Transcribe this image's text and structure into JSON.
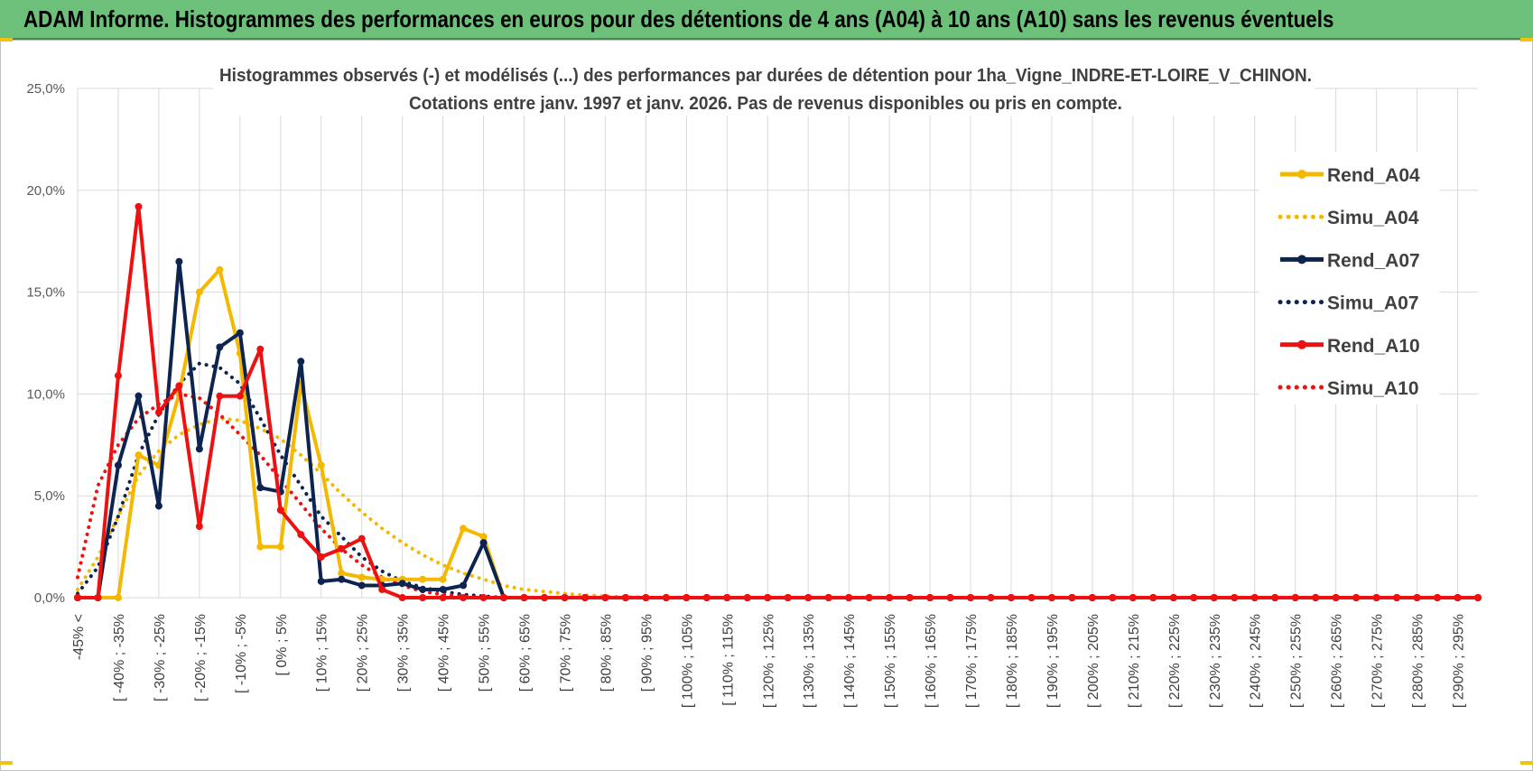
{
  "banner": {
    "title": "ADAM Informe. Histogrammes des performances en euros pour des détentions de 4 ans (A04) à 10 ans (A10) sans les revenus éventuels"
  },
  "colors": {
    "banner_bg": "#6cc07a",
    "a04": "#f5b800",
    "a07": "#0d2350",
    "a10": "#ee1111",
    "grid": "#d9d9d9"
  },
  "chart_data": {
    "type": "line",
    "title": "Histogrammes observés (-) et modélisés (...) des performances par durées de détention pour 1ha_Vigne_INDRE-ET-LOIRE_V_CHINON.",
    "subtitle": "Cotations entre janv. 1997 et janv. 2026. Pas de revenus disponibles ou pris en compte.",
    "xlabel": "",
    "ylabel": "",
    "ylim": [
      0,
      25
    ],
    "yticks": [
      "0,0%",
      "5,0%",
      "10,0%",
      "15,0%",
      "20,0%",
      "25,0%"
    ],
    "grid": true,
    "legend_position": "right",
    "x_labels": [
      "-45% <",
      "[ -40% ; -35%",
      "[ -30% ; -25%",
      "[ -20% ; -15%",
      "[ -10% ; -5%",
      "[ 0% ; 5%",
      "[ 10% ; 15%",
      "[ 20% ; 25%",
      "[ 30% ; 35%",
      "[ 40% ; 45%",
      "[ 50% ; 55%",
      "[ 60% ; 65%",
      "[ 70% ; 75%",
      "[ 80% ; 85%",
      "[ 90% ; 95%",
      "[ 100% ; 105%",
      "[ 110% ; 115%",
      "[ 120% ; 125%",
      "[ 130% ; 135%",
      "[ 140% ; 145%",
      "[ 150% ; 155%",
      "[ 160% ; 165%",
      "[ 170% ; 175%",
      "[ 180% ; 185%",
      "[ 190% ; 195%",
      "[ 200% ; 205%",
      "[ 210% ; 215%",
      "[ 220% ; 225%",
      "[ 230% ; 235%",
      "[ 240% ; 245%",
      "[ 250% ; 255%",
      "[ 260% ; 265%",
      "[ 270% ; 275%",
      "[ 280% ; 285%",
      "[ 290% ; 295%"
    ],
    "n_points": 70,
    "series": [
      {
        "name": "Rend_A04",
        "style": "solid",
        "color": "#f5b800",
        "values": [
          0,
          0,
          0,
          7,
          6.5,
          10,
          15,
          16.1,
          12,
          2.5,
          2.5,
          10.5,
          6.5,
          1.2,
          1,
          0.9,
          0.9,
          0.9,
          0.9,
          3.4,
          3,
          0
        ]
      },
      {
        "name": "Simu_A04",
        "style": "dotted",
        "color": "#f5b800",
        "values": [
          0.4,
          2,
          4,
          6,
          7.2,
          8,
          8.5,
          8.8,
          8.7,
          8.3,
          7.8,
          7,
          6.1,
          5.1,
          4.2,
          3.4,
          2.7,
          2.1,
          1.6,
          1.2,
          0.9,
          0.6,
          0.4,
          0.3,
          0.2,
          0.12,
          0.07,
          0.04,
          0.02,
          0
        ]
      },
      {
        "name": "Rend_A07",
        "style": "solid",
        "color": "#0d2350",
        "values": [
          0,
          0,
          6.5,
          9.9,
          4.5,
          16.5,
          7.3,
          12.3,
          13,
          5.4,
          5.2,
          11.6,
          0.8,
          0.9,
          0.6,
          0.6,
          0.7,
          0.4,
          0.4,
          0.6,
          2.7,
          0
        ]
      },
      {
        "name": "Simu_A07",
        "style": "dotted",
        "color": "#0d2350",
        "values": [
          0.2,
          1.5,
          4,
          7,
          9,
          10.5,
          11.5,
          11.3,
          10.5,
          8.8,
          7,
          5.5,
          4,
          3,
          2,
          1.3,
          0.8,
          0.5,
          0.3,
          0.15,
          0.07,
          0
        ]
      },
      {
        "name": "Rend_A10",
        "style": "solid",
        "color": "#ee1111",
        "values": [
          0,
          0,
          10.9,
          19.2,
          9.1,
          10.4,
          3.5,
          9.9,
          9.9,
          12.2,
          4.3,
          3.1,
          2,
          2.4,
          2.9,
          0.4,
          0,
          0,
          0,
          0,
          0,
          0
        ]
      },
      {
        "name": "Simu_A10",
        "style": "dotted",
        "color": "#ee1111",
        "values": [
          1,
          5.5,
          7.5,
          8.8,
          9.5,
          10,
          9.8,
          9,
          8,
          7,
          5.8,
          4.6,
          3.4,
          2.4,
          1.6,
          1,
          0.6,
          0.3,
          0.15,
          0.05,
          0
        ]
      }
    ]
  }
}
